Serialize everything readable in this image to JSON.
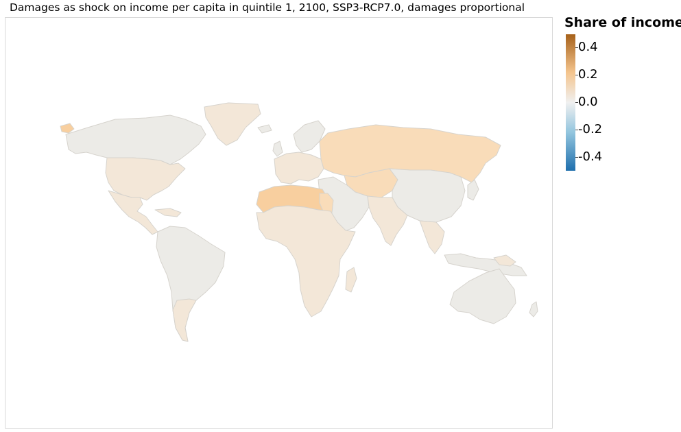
{
  "title": "Damages as shock on income per capita in quintile 1, 2100, SSP3-RCP7.0, damages proportional",
  "legend": {
    "title": "Share of income",
    "ticks": [
      "0.4",
      "0.2",
      "0.0",
      "-0.2",
      "-0.4"
    ],
    "range": [
      -0.5,
      0.5
    ],
    "colors": {
      "high": "#a6611a",
      "mid_high": "#f4c48d",
      "zero": "#f0f0f0",
      "mid_low": "#92c5de",
      "low": "#1f6fad"
    }
  },
  "map_colors": {
    "neutral": "#ecebe7",
    "light_warm": "#f3e7d8",
    "warm": "#f9dcb9",
    "warmer": "#f8cf9f",
    "border": "#d6d3cd"
  }
}
